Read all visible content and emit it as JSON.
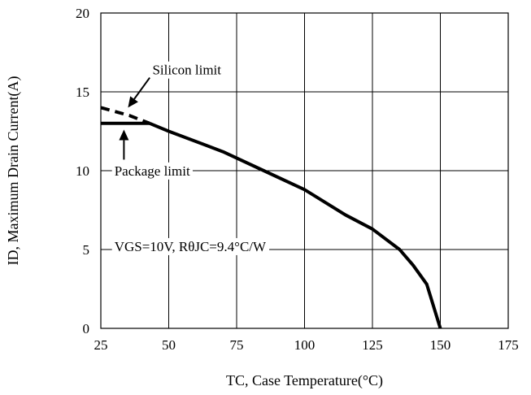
{
  "chart_data": {
    "type": "line",
    "title": "",
    "xlabel": "TC, Case Temperature(°C)",
    "ylabel": "ID, Maximum Drain Current(A)",
    "xlim": [
      25,
      175
    ],
    "ylim": [
      0,
      20
    ],
    "xticks": [
      25,
      50,
      75,
      100,
      125,
      150,
      175
    ],
    "yticks": [
      0,
      5,
      10,
      15,
      20
    ],
    "grid": true,
    "series": [
      {
        "name": "Silicon limit",
        "style": "dashed",
        "x": [
          25,
          35.5,
          43
        ],
        "y": [
          14.0,
          13.5,
          13.0
        ]
      },
      {
        "name": "Package limit",
        "style": "solid",
        "x": [
          25,
          43
        ],
        "y": [
          13.0,
          13.0
        ]
      },
      {
        "name": "",
        "style": "solid",
        "x": [
          43,
          50,
          70,
          85,
          100,
          115,
          125,
          135,
          140,
          145,
          150
        ],
        "y": [
          13.0,
          12.5,
          11.2,
          10.0,
          8.8,
          7.2,
          6.3,
          5.0,
          4.0,
          2.8,
          0
        ]
      }
    ],
    "annotations": [
      {
        "text": "Silicon limit",
        "x": 44,
        "y": 16.1
      },
      {
        "text": "Package limit",
        "x": 30,
        "y": 9.7
      },
      {
        "text": "VGS=10V, RθJC=9.4°C/W",
        "x": 30,
        "y": 4.9
      }
    ]
  }
}
